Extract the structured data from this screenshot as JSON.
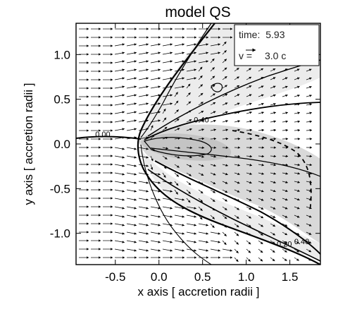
{
  "chart_data": {
    "type": "contour",
    "title": "model QS",
    "xlabel": "x axis [ accretion radii ]",
    "ylabel": "y axis [ accretion radii ]",
    "xlim": [
      -0.95,
      1.85
    ],
    "ylim": [
      -1.35,
      1.35
    ],
    "x_ticks": [
      -0.5,
      0.0,
      0.5,
      1.0,
      1.5
    ],
    "x_tick_labels": [
      "-0.5",
      "0.0",
      "0.5",
      "1.0",
      "1.5"
    ],
    "y_ticks": [
      -1.0,
      -0.5,
      0.0,
      0.5,
      1.0
    ],
    "y_tick_labels": [
      "-1.0",
      "-0.5",
      "0.0",
      "0.5",
      "1.0"
    ],
    "grid": false,
    "legend": {
      "time_label": "time:",
      "time_value": "5.93",
      "velocity_label": "v =",
      "velocity_value": "3.0 c"
    },
    "contour_labels": [
      {
        "text": "0.00",
        "x": -0.73,
        "y": 0.08
      },
      {
        "text": "0.40",
        "x": 0.4,
        "y": 0.24
      },
      {
        "text": "0.20",
        "x": 1.35,
        "y": -1.15
      },
      {
        "text": "0.40",
        "x": 1.55,
        "y": -1.12
      }
    ],
    "flow": {
      "upstream_direction": "+x",
      "shock_apex": [
        -0.12,
        0.0
      ]
    },
    "colors": {
      "background": "#ffffff",
      "light_fill": "#ececec",
      "mid_fill": "#d9d9d9",
      "dark_fill": "#c4c4c4",
      "lines": "#000000"
    }
  }
}
